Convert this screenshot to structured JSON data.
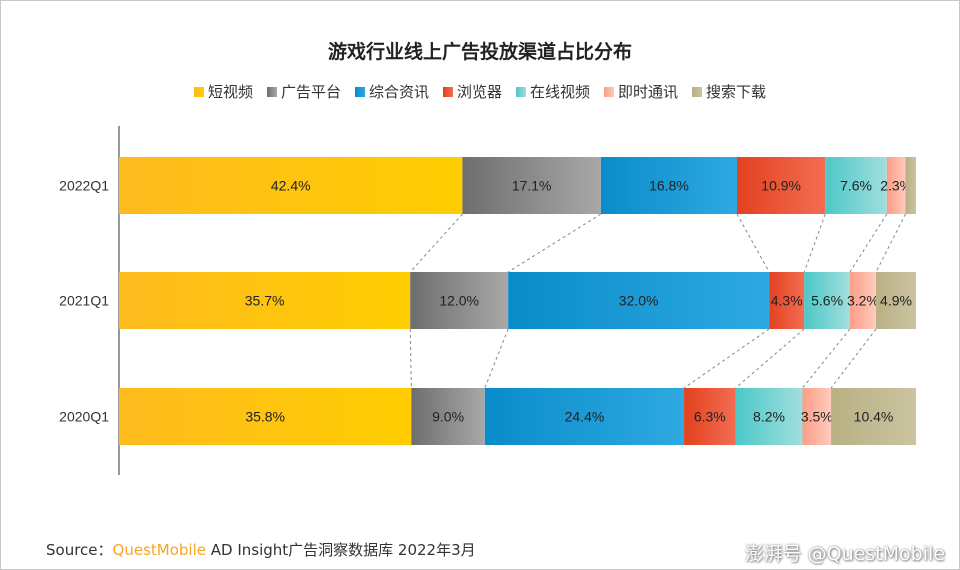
{
  "chart_data": {
    "type": "bar",
    "orientation": "horizontal",
    "stacked": true,
    "title": "游戏行业线上广告投放渠道占比分布",
    "categories": [
      "2022Q1",
      "2021Q1",
      "2020Q1"
    ],
    "series": [
      {
        "name": "短视频",
        "color": "#fdbb1e",
        "color2": "#ffcd00",
        "values": [
          42.4,
          35.7,
          35.8
        ]
      },
      {
        "name": "广告平台",
        "color": "#6e6e6e",
        "color2": "#a8a8a8",
        "values": [
          17.1,
          12.0,
          9.0
        ]
      },
      {
        "name": "综合资讯",
        "color": "#0a8cca",
        "color2": "#2ea9e1",
        "values": [
          16.8,
          32.0,
          24.4
        ]
      },
      {
        "name": "浏览器",
        "color": "#e3411f",
        "color2": "#f36d52",
        "values": [
          10.9,
          4.3,
          6.3
        ]
      },
      {
        "name": "在线视频",
        "color": "#4cc8c8",
        "color2": "#a2dede",
        "values": [
          7.6,
          5.6,
          8.2
        ]
      },
      {
        "name": "即时通讯",
        "color": "#fb9d86",
        "color2": "#ffcbbd",
        "values": [
          2.3,
          3.2,
          3.5
        ]
      },
      {
        "name": "搜索下载",
        "color": "#b9b084",
        "color2": "#cbc4a0",
        "values": [
          1.3,
          4.9,
          10.4
        ]
      }
    ],
    "data_labels": [
      [
        "42.4%",
        "17.1%",
        "16.8%",
        "10.9%",
        "7.6%",
        "2.3%",
        ""
      ],
      [
        "35.7%",
        "12.0%",
        "32.0%",
        "4.3%",
        "5.6%",
        "3.2%",
        "4.9%"
      ],
      [
        "35.8%",
        "9.0%",
        "24.4%",
        "6.3%",
        "8.2%",
        "3.5%",
        "10.4%"
      ]
    ],
    "legend_position": "top",
    "grid": false
  },
  "source": {
    "label": "Source：",
    "brand": "QuestMobile",
    "text": " AD Insight广告洞察数据库 2022年3月"
  },
  "watermark": "澎湃号 @QuestMobile"
}
